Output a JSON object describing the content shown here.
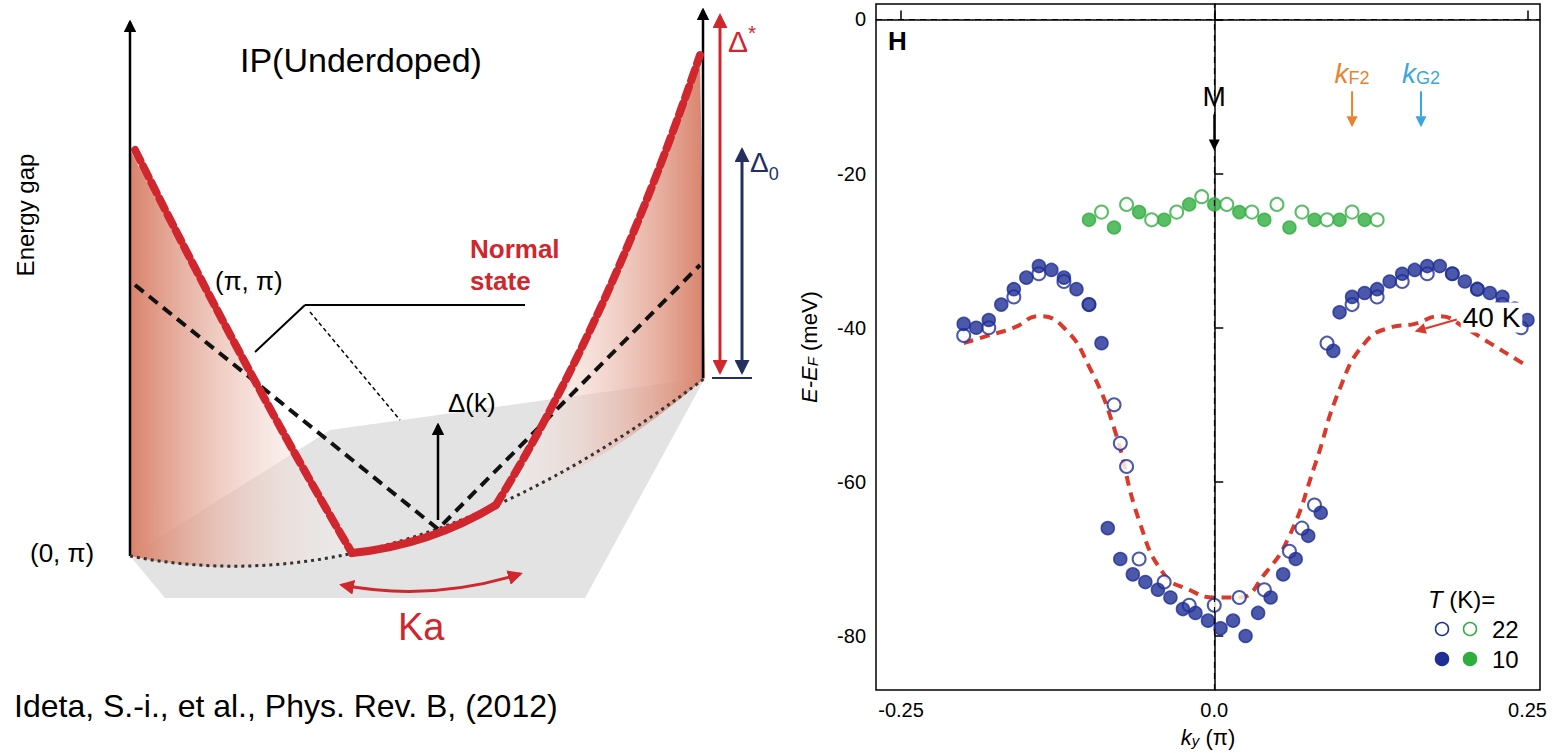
{
  "diagram": {
    "title": "IP(Underdoped)",
    "y_axis_label": "Energy gap",
    "point_pi_pi": "(π, π)",
    "point_0_pi": "(0, π)",
    "gap_label": "Δ(k)",
    "normal_state": "Normal state",
    "pseudogap": {
      "main": "Δ",
      "sup": "*"
    },
    "sc_gap": {
      "main": "Δ",
      "sub": "0"
    },
    "arc_length": "Ka"
  },
  "caption": "Ideta, S.-i., et al., Phys. Rev. B, (2012)",
  "chart_data": {
    "type": "scatter",
    "panel_label": "H",
    "xlabel": {
      "main": "k",
      "sub": "y",
      "rest": " (π)"
    },
    "ylabel": {
      "main": "E-E",
      "sub": "F",
      "rest": " (meV)"
    },
    "xlim": [
      -0.27,
      0.26
    ],
    "xticks": [
      -0.25,
      {
        "value": 0,
        "label": "0.0"
      },
      0.25
    ],
    "ylim": [
      -87,
      2
    ],
    "yticks": [
      -80,
      -60,
      -40,
      -20,
      0
    ],
    "reference_lines": {
      "x": [
        0
      ],
      "y": [
        0
      ]
    },
    "legend": "lower right",
    "legend_title": {
      "main": "T",
      "rest": " (K)="
    },
    "series": [
      {
        "name": "22",
        "type": "scatter",
        "color": "#1f2f96",
        "marker": "open_circle",
        "x": [
          -0.2,
          -0.18,
          -0.16,
          -0.14,
          -0.12,
          -0.1,
          -0.08,
          -0.075,
          -0.07,
          -0.06,
          -0.04,
          -0.02,
          0,
          0.02,
          0.04,
          0.06,
          0.07,
          0.08,
          0.09,
          0.11,
          0.13,
          0.15,
          0.17,
          0.19,
          0.21,
          0.23,
          0.245
        ],
        "values": [
          -41,
          -40,
          -36,
          -33,
          -34,
          -37,
          -50,
          -55,
          -58,
          -70,
          -73,
          -76,
          -76,
          -75,
          -74,
          -69,
          -66,
          -63,
          -42,
          -37,
          -36,
          -34,
          -33,
          -33,
          -35,
          -37,
          -40
        ]
      },
      {
        "name": "10",
        "type": "scatter",
        "color": "#1f2f96",
        "marker": "filled_circle",
        "x": [
          -0.2,
          -0.19,
          -0.18,
          -0.17,
          -0.16,
          -0.15,
          -0.14,
          -0.13,
          -0.12,
          -0.11,
          -0.1,
          -0.09,
          -0.085,
          -0.075,
          -0.065,
          -0.055,
          -0.045,
          -0.035,
          -0.025,
          -0.015,
          -0.005,
          0.005,
          0.015,
          0.025,
          0.035,
          0.045,
          0.055,
          0.065,
          0.075,
          0.085,
          0.095,
          0.1,
          0.11,
          0.12,
          0.13,
          0.14,
          0.15,
          0.16,
          0.17,
          0.18,
          0.19,
          0.2,
          0.21,
          0.22,
          0.23,
          0.24,
          0.25
        ],
        "values": [
          -39.5,
          -40,
          -39,
          -37,
          -35,
          -33.5,
          -32,
          -32.5,
          -33.5,
          -35,
          -37,
          -42,
          -66,
          -70,
          -72,
          -73,
          -74,
          -75,
          -76.5,
          -77,
          -78,
          -79,
          -78,
          -80,
          -77,
          -75,
          -72,
          -70,
          -67,
          -64,
          -43,
          -38,
          -36,
          -35.5,
          -35,
          -34,
          -33,
          -32.5,
          -32,
          -32,
          -33,
          -34,
          -35,
          -35.5,
          -36,
          -37.5,
          -39
        ]
      },
      {
        "name": "10",
        "type": "scatter",
        "color": "#2fae3f",
        "marker": "filled_circle",
        "x": [
          -0.1,
          -0.08,
          -0.06,
          -0.04,
          -0.02,
          0,
          0.02,
          0.04,
          0.06,
          0.08,
          0.1,
          0.12
        ],
        "values": [
          -26,
          -27,
          -25,
          -26,
          -24,
          -24,
          -25,
          -26,
          -27,
          -26,
          -26,
          -26
        ]
      },
      {
        "name": "22",
        "type": "scatter",
        "color": "#2fae3f",
        "marker": "open_circle",
        "x": [
          -0.09,
          -0.07,
          -0.05,
          -0.03,
          -0.01,
          0.01,
          0.03,
          0.05,
          0.07,
          0.09,
          0.11,
          0.13
        ],
        "values": [
          -25,
          -24,
          -26,
          -25,
          -23,
          -24,
          -25,
          -24,
          -25,
          -26,
          -25,
          -26
        ]
      },
      {
        "name": "40 K",
        "type": "line",
        "color": "#d93a2b",
        "line_style": "dashed",
        "x": [
          -0.2,
          -0.18,
          -0.16,
          -0.14,
          -0.12,
          -0.1,
          -0.08,
          -0.06,
          -0.04,
          -0.02,
          0,
          0.02,
          0.04,
          0.06,
          0.08,
          0.1,
          0.12,
          0.14,
          0.16,
          0.18,
          0.2,
          0.22,
          0.24,
          0.25
        ],
        "values": [
          -42,
          -41,
          -40,
          -38.5,
          -40,
          -45,
          -53,
          -65,
          -72,
          -74,
          -75,
          -75,
          -72,
          -67,
          -58,
          -48,
          -42,
          -40,
          -39.5,
          -38.5,
          -40,
          -42,
          -44,
          -45
        ],
        "pointer": {
          "x": 0.16,
          "y": -40.5
        }
      }
    ],
    "annotations": [
      {
        "main": "M",
        "x": 0,
        "y": -17,
        "color": "#000000"
      },
      {
        "main": "k",
        "sub": "F2",
        "x": 0.11,
        "y": -14,
        "color": "#e8822e"
      },
      {
        "main": "k",
        "sub": "G2",
        "x": 0.165,
        "y": -14,
        "color": "#3aa6dc"
      }
    ]
  }
}
